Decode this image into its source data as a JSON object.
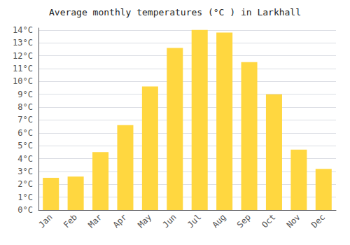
{
  "chart_data": {
    "type": "bar",
    "title": "Average monthly temperatures (°C ) in Larkhall",
    "categories": [
      "Jan",
      "Feb",
      "Mar",
      "Apr",
      "May",
      "Jun",
      "Jul",
      "Aug",
      "Sep",
      "Oct",
      "Nov",
      "Dec"
    ],
    "values": [
      2.5,
      2.6,
      4.5,
      6.6,
      9.6,
      12.6,
      14.0,
      13.8,
      11.5,
      9.0,
      4.7,
      3.2
    ],
    "color": "#FFD740",
    "ylim": [
      0,
      14.15
    ],
    "yticks": [
      {
        "value": 0,
        "label": "0°C"
      },
      {
        "value": 1,
        "label": "1°C"
      },
      {
        "value": 2,
        "label": "2°C"
      },
      {
        "value": 3,
        "label": "3°C"
      },
      {
        "value": 4,
        "label": "4°C"
      },
      {
        "value": 5,
        "label": "5°C"
      },
      {
        "value": 6,
        "label": "6°C"
      },
      {
        "value": 7,
        "label": "7°C"
      },
      {
        "value": 8,
        "label": "8°C"
      },
      {
        "value": 9,
        "label": "9°C"
      },
      {
        "value": 10,
        "label": "10°C"
      },
      {
        "value": 11,
        "label": "11°C"
      },
      {
        "value": 12,
        "label": "12°C"
      },
      {
        "value": 13,
        "label": "13°C"
      },
      {
        "value": 14,
        "label": "14°C"
      }
    ],
    "grid": true
  }
}
